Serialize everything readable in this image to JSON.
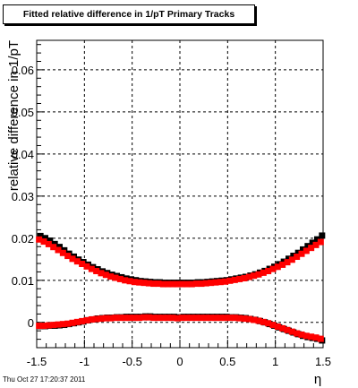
{
  "title": "Fitted relative difference in 1/pT  Primary Tracks",
  "timestamp": "Thu Oct 27 17:20:37 2011",
  "chart_data": {
    "type": "scatter",
    "title": "Fitted relative difference in 1/pT  Primary Tracks",
    "xlabel": "η",
    "ylabel": "relative difference in 1/pT",
    "xlim": [
      -1.5,
      1.5
    ],
    "ylim": [
      -0.006,
      0.067
    ],
    "grid": true,
    "x_ticks": [
      -1.5,
      -1,
      -0.5,
      0,
      0.5,
      1,
      1.5
    ],
    "x_tick_labels": [
      "-1.5",
      "-1",
      "-0.5",
      "0",
      "0.5",
      "1",
      "1.5"
    ],
    "y_ticks": [
      0,
      0.01,
      0.02,
      0.03,
      0.04,
      0.05,
      0.06
    ],
    "y_tick_labels": [
      "0",
      "0.01",
      "0.02",
      "0.03",
      "0.04",
      "0.05",
      "0.06"
    ],
    "series": [
      {
        "color": "#000000",
        "x": [
          -1.475,
          -1.425,
          -1.375,
          -1.325,
          -1.275,
          -1.225,
          -1.175,
          -1.125,
          -1.075,
          -1.025,
          -0.975,
          -0.925,
          -0.875,
          -0.825,
          -0.775,
          -0.725,
          -0.675,
          -0.625,
          -0.575,
          -0.525,
          -0.475,
          -0.425,
          -0.375,
          -0.325,
          -0.275,
          -0.225,
          -0.175,
          -0.125,
          -0.075,
          -0.025,
          0.025,
          0.075,
          0.125,
          0.175,
          0.225,
          0.275,
          0.325,
          0.375,
          0.425,
          0.475,
          0.525,
          0.575,
          0.625,
          0.675,
          0.725,
          0.775,
          0.825,
          0.875,
          0.925,
          0.975,
          1.025,
          1.075,
          1.125,
          1.175,
          1.225,
          1.275,
          1.325,
          1.375,
          1.425,
          1.475
        ],
        "y": [
          0.0202,
          0.0197,
          0.0191,
          0.0183,
          0.0176,
          0.0168,
          0.016,
          0.0153,
          0.0146,
          0.014,
          0.0134,
          0.0128,
          0.0123,
          0.0118,
          0.0114,
          0.011,
          0.0107,
          0.0104,
          0.0101,
          0.0099,
          0.0097,
          0.0095,
          0.0094,
          0.0093,
          0.0092,
          0.0092,
          0.0091,
          0.0091,
          0.0091,
          0.0091,
          0.0091,
          0.0091,
          0.0091,
          0.0092,
          0.0092,
          0.0093,
          0.0094,
          0.0095,
          0.0096,
          0.0097,
          0.0099,
          0.0101,
          0.0103,
          0.0105,
          0.0108,
          0.0111,
          0.0115,
          0.0119,
          0.0124,
          0.0129,
          0.0135,
          0.0141,
          0.0148,
          0.0155,
          0.0162,
          0.017,
          0.0178,
          0.0186,
          0.0194,
          0.0203
        ]
      },
      {
        "color": "#ff0000",
        "x": [
          -1.475,
          -1.425,
          -1.375,
          -1.325,
          -1.275,
          -1.225,
          -1.175,
          -1.125,
          -1.075,
          -1.025,
          -0.975,
          -0.925,
          -0.875,
          -0.825,
          -0.775,
          -0.725,
          -0.675,
          -0.625,
          -0.575,
          -0.525,
          -0.475,
          -0.425,
          -0.375,
          -0.325,
          -0.275,
          -0.225,
          -0.175,
          -0.125,
          -0.075,
          -0.025,
          0.025,
          0.075,
          0.125,
          0.175,
          0.225,
          0.275,
          0.325,
          0.375,
          0.425,
          0.475,
          0.525,
          0.575,
          0.625,
          0.675,
          0.725,
          0.775,
          0.825,
          0.875,
          0.925,
          0.975,
          1.025,
          1.075,
          1.125,
          1.175,
          1.225,
          1.275,
          1.325,
          1.375,
          1.425,
          1.475
        ],
        "y": [
          0.0197,
          0.0192,
          0.0186,
          0.0179,
          0.0172,
          0.0165,
          0.0158,
          0.0151,
          0.0145,
          0.0139,
          0.0133,
          0.0127,
          0.0122,
          0.0117,
          0.0113,
          0.0109,
          0.0106,
          0.0103,
          0.01,
          0.0098,
          0.0096,
          0.0095,
          0.0094,
          0.0093,
          0.0092,
          0.0092,
          0.0091,
          0.0091,
          0.0091,
          0.0091,
          0.0091,
          0.0091,
          0.0091,
          0.0092,
          0.0092,
          0.0093,
          0.0094,
          0.0095,
          0.0096,
          0.0097,
          0.0099,
          0.0101,
          0.0103,
          0.0105,
          0.0108,
          0.0111,
          0.0114,
          0.0118,
          0.0122,
          0.0127,
          0.0132,
          0.0137,
          0.0143,
          0.0149,
          0.0156,
          0.0163,
          0.017,
          0.0177,
          0.0184,
          0.0191
        ]
      },
      {
        "color": "#000000",
        "x": [
          -1.475,
          -1.425,
          -1.375,
          -1.325,
          -1.275,
          -1.225,
          -1.175,
          -1.125,
          -1.075,
          -1.025,
          -0.975,
          -0.925,
          -0.875,
          -0.825,
          -0.775,
          -0.725,
          -0.675,
          -0.625,
          -0.575,
          -0.525,
          -0.475,
          -0.425,
          -0.375,
          -0.325,
          -0.275,
          -0.225,
          -0.175,
          -0.125,
          -0.075,
          -0.025,
          0.025,
          0.075,
          0.125,
          0.175,
          0.225,
          0.275,
          0.325,
          0.375,
          0.425,
          0.475,
          0.525,
          0.575,
          0.625,
          0.675,
          0.725,
          0.775,
          0.825,
          0.875,
          0.925,
          0.975,
          1.025,
          1.075,
          1.125,
          1.175,
          1.225,
          1.275,
          1.325,
          1.375,
          1.425,
          1.475
        ],
        "y": [
          -0.0012,
          -0.0012,
          -0.0011,
          -0.0011,
          -0.001,
          -0.0009,
          -0.0007,
          -0.0005,
          -0.0003,
          -0.0001,
          0.0002,
          0.0004,
          0.0006,
          0.0007,
          0.0008,
          0.0008,
          0.0009,
          0.0009,
          0.001,
          0.001,
          0.001,
          0.001,
          0.0011,
          0.0011,
          0.001,
          0.001,
          0.001,
          0.001,
          0.001,
          0.0009,
          0.001,
          0.001,
          0.001,
          0.001,
          0.001,
          0.001,
          0.001,
          0.001,
          0.001,
          0.001,
          0.0009,
          0.0009,
          0.0008,
          0.0007,
          0.0005,
          0.0003,
          0.0,
          -0.0003,
          -0.0007,
          -0.0011,
          -0.0015,
          -0.0019,
          -0.0023,
          -0.0027,
          -0.0031,
          -0.0035,
          -0.0038,
          -0.004,
          -0.0042,
          -0.0046
        ]
      },
      {
        "color": "#ff0000",
        "x": [
          -1.475,
          -1.425,
          -1.375,
          -1.325,
          -1.275,
          -1.225,
          -1.175,
          -1.125,
          -1.075,
          -1.025,
          -0.975,
          -0.925,
          -0.875,
          -0.825,
          -0.775,
          -0.725,
          -0.675,
          -0.625,
          -0.575,
          -0.525,
          -0.475,
          -0.425,
          -0.375,
          -0.325,
          -0.275,
          -0.225,
          -0.175,
          -0.125,
          -0.075,
          -0.025,
          0.025,
          0.075,
          0.125,
          0.175,
          0.225,
          0.275,
          0.325,
          0.375,
          0.425,
          0.475,
          0.525,
          0.575,
          0.625,
          0.675,
          0.725,
          0.775,
          0.825,
          0.875,
          0.925,
          0.975,
          1.025,
          1.075,
          1.125,
          1.175,
          1.225,
          1.275,
          1.325,
          1.375,
          1.425,
          1.475
        ],
        "y": [
          -0.0008,
          -0.0008,
          -0.0007,
          -0.0006,
          -0.0005,
          -0.0004,
          -0.0003,
          -0.0001,
          0.0001,
          0.0003,
          0.0005,
          0.0007,
          0.0008,
          0.0009,
          0.001,
          0.001,
          0.0011,
          0.0011,
          0.0011,
          0.0011,
          0.0011,
          0.0011,
          0.0012,
          0.0012,
          0.0011,
          0.0011,
          0.0011,
          0.0011,
          0.0011,
          0.001,
          0.0011,
          0.0011,
          0.0011,
          0.0011,
          0.0011,
          0.0011,
          0.0011,
          0.0011,
          0.0011,
          0.0011,
          0.0011,
          0.0011,
          0.001,
          0.0009,
          0.0008,
          0.0006,
          0.0004,
          0.0001,
          -0.0002,
          -0.0006,
          -0.001,
          -0.0014,
          -0.0018,
          -0.0022,
          -0.0026,
          -0.0029,
          -0.0032,
          -0.0034,
          -0.0036,
          -0.0039
        ]
      }
    ]
  }
}
